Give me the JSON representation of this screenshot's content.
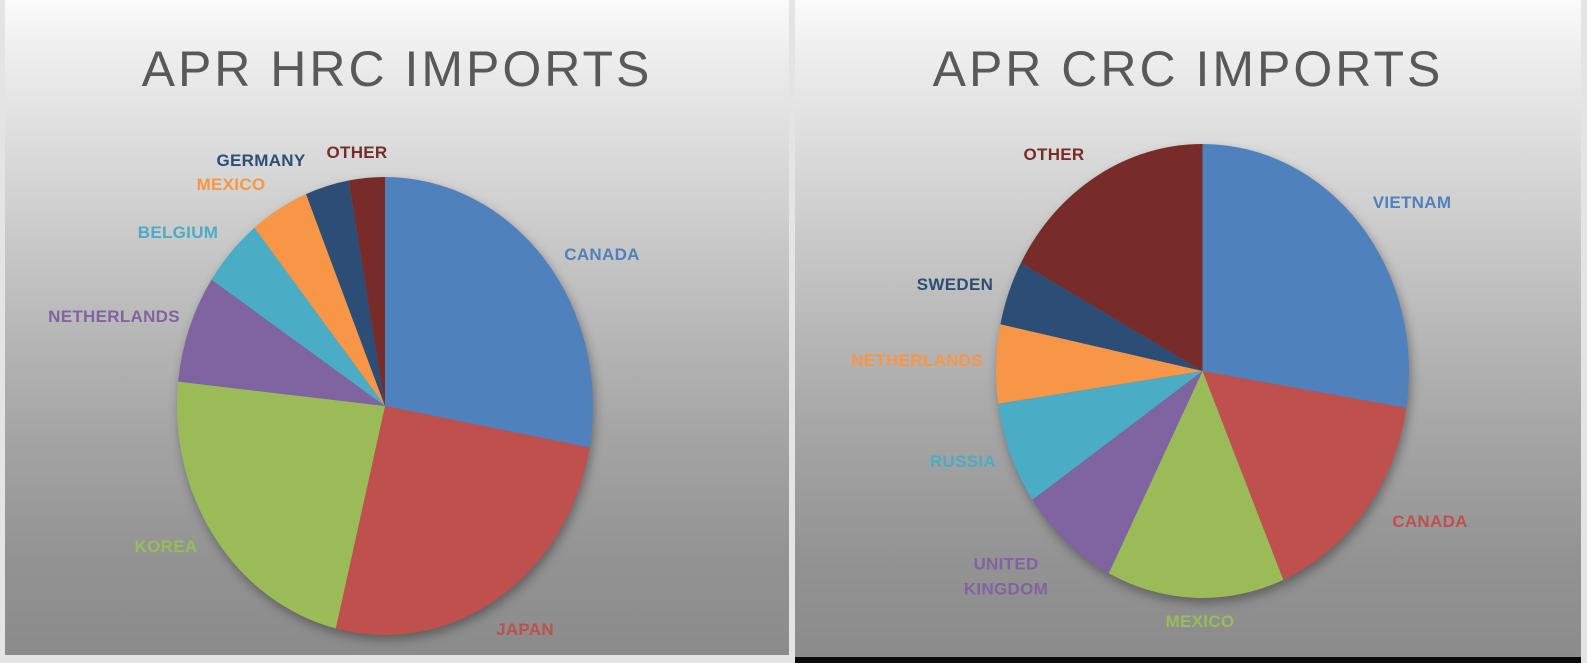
{
  "chart_data": [
    {
      "type": "pie",
      "title": "APR HRC IMPORTS",
      "legend": "none",
      "label_style": "category names placed around pie, colored to match slice",
      "start_angle": "12-oclock",
      "direction": "clockwise",
      "title_color": "#595959",
      "slices": [
        {
          "label": "CANADA",
          "value_pct": 27.9,
          "color": "#4F81BD"
        },
        {
          "label": "JAPAN",
          "value_pct": 25.9,
          "color": "#C0504D"
        },
        {
          "label": "KOREA",
          "value_pct": 22.9,
          "color": "#9BBB59"
        },
        {
          "label": "NETHERLANDS",
          "value_pct": 7.6,
          "color": "#8064A2"
        },
        {
          "label": "BELGIUM",
          "value_pct": 4.9,
          "color": "#4BACC6"
        },
        {
          "label": "MEXICO",
          "value_pct": 4.6,
          "color": "#F79646"
        },
        {
          "label": "GERMANY",
          "value_pct": 3.4,
          "color": "#2C4D75"
        },
        {
          "label": "OTHER",
          "value_pct": 2.8,
          "color": "#772C2A"
        }
      ]
    },
    {
      "type": "pie",
      "title": "APR CRC IMPORTS",
      "legend": "none",
      "label_style": "category names placed around pie, colored to match slice",
      "start_angle": "12-oclock",
      "direction": "clockwise",
      "title_color": "#595959",
      "slices": [
        {
          "label": "VIETNAM",
          "value_pct": 27.6,
          "color": "#4F81BD"
        },
        {
          "label": "CANADA",
          "value_pct": 16.0,
          "color": "#C0504D"
        },
        {
          "label": "MEXICO",
          "value_pct": 13.9,
          "color": "#9BBB59"
        },
        {
          "label": "UNITED KINGDOM",
          "value_pct": 7.9,
          "color": "#8064A2"
        },
        {
          "label": "RUSSIA",
          "value_pct": 7.3,
          "color": "#4BACC6"
        },
        {
          "label": "NETHERLANDS",
          "value_pct": 5.6,
          "color": "#F79646"
        },
        {
          "label": "SWEDEN",
          "value_pct": 4.6,
          "color": "#2C4D75"
        },
        {
          "label": "OTHER",
          "value_pct": 17.1,
          "color": "#772C2A"
        }
      ]
    }
  ]
}
